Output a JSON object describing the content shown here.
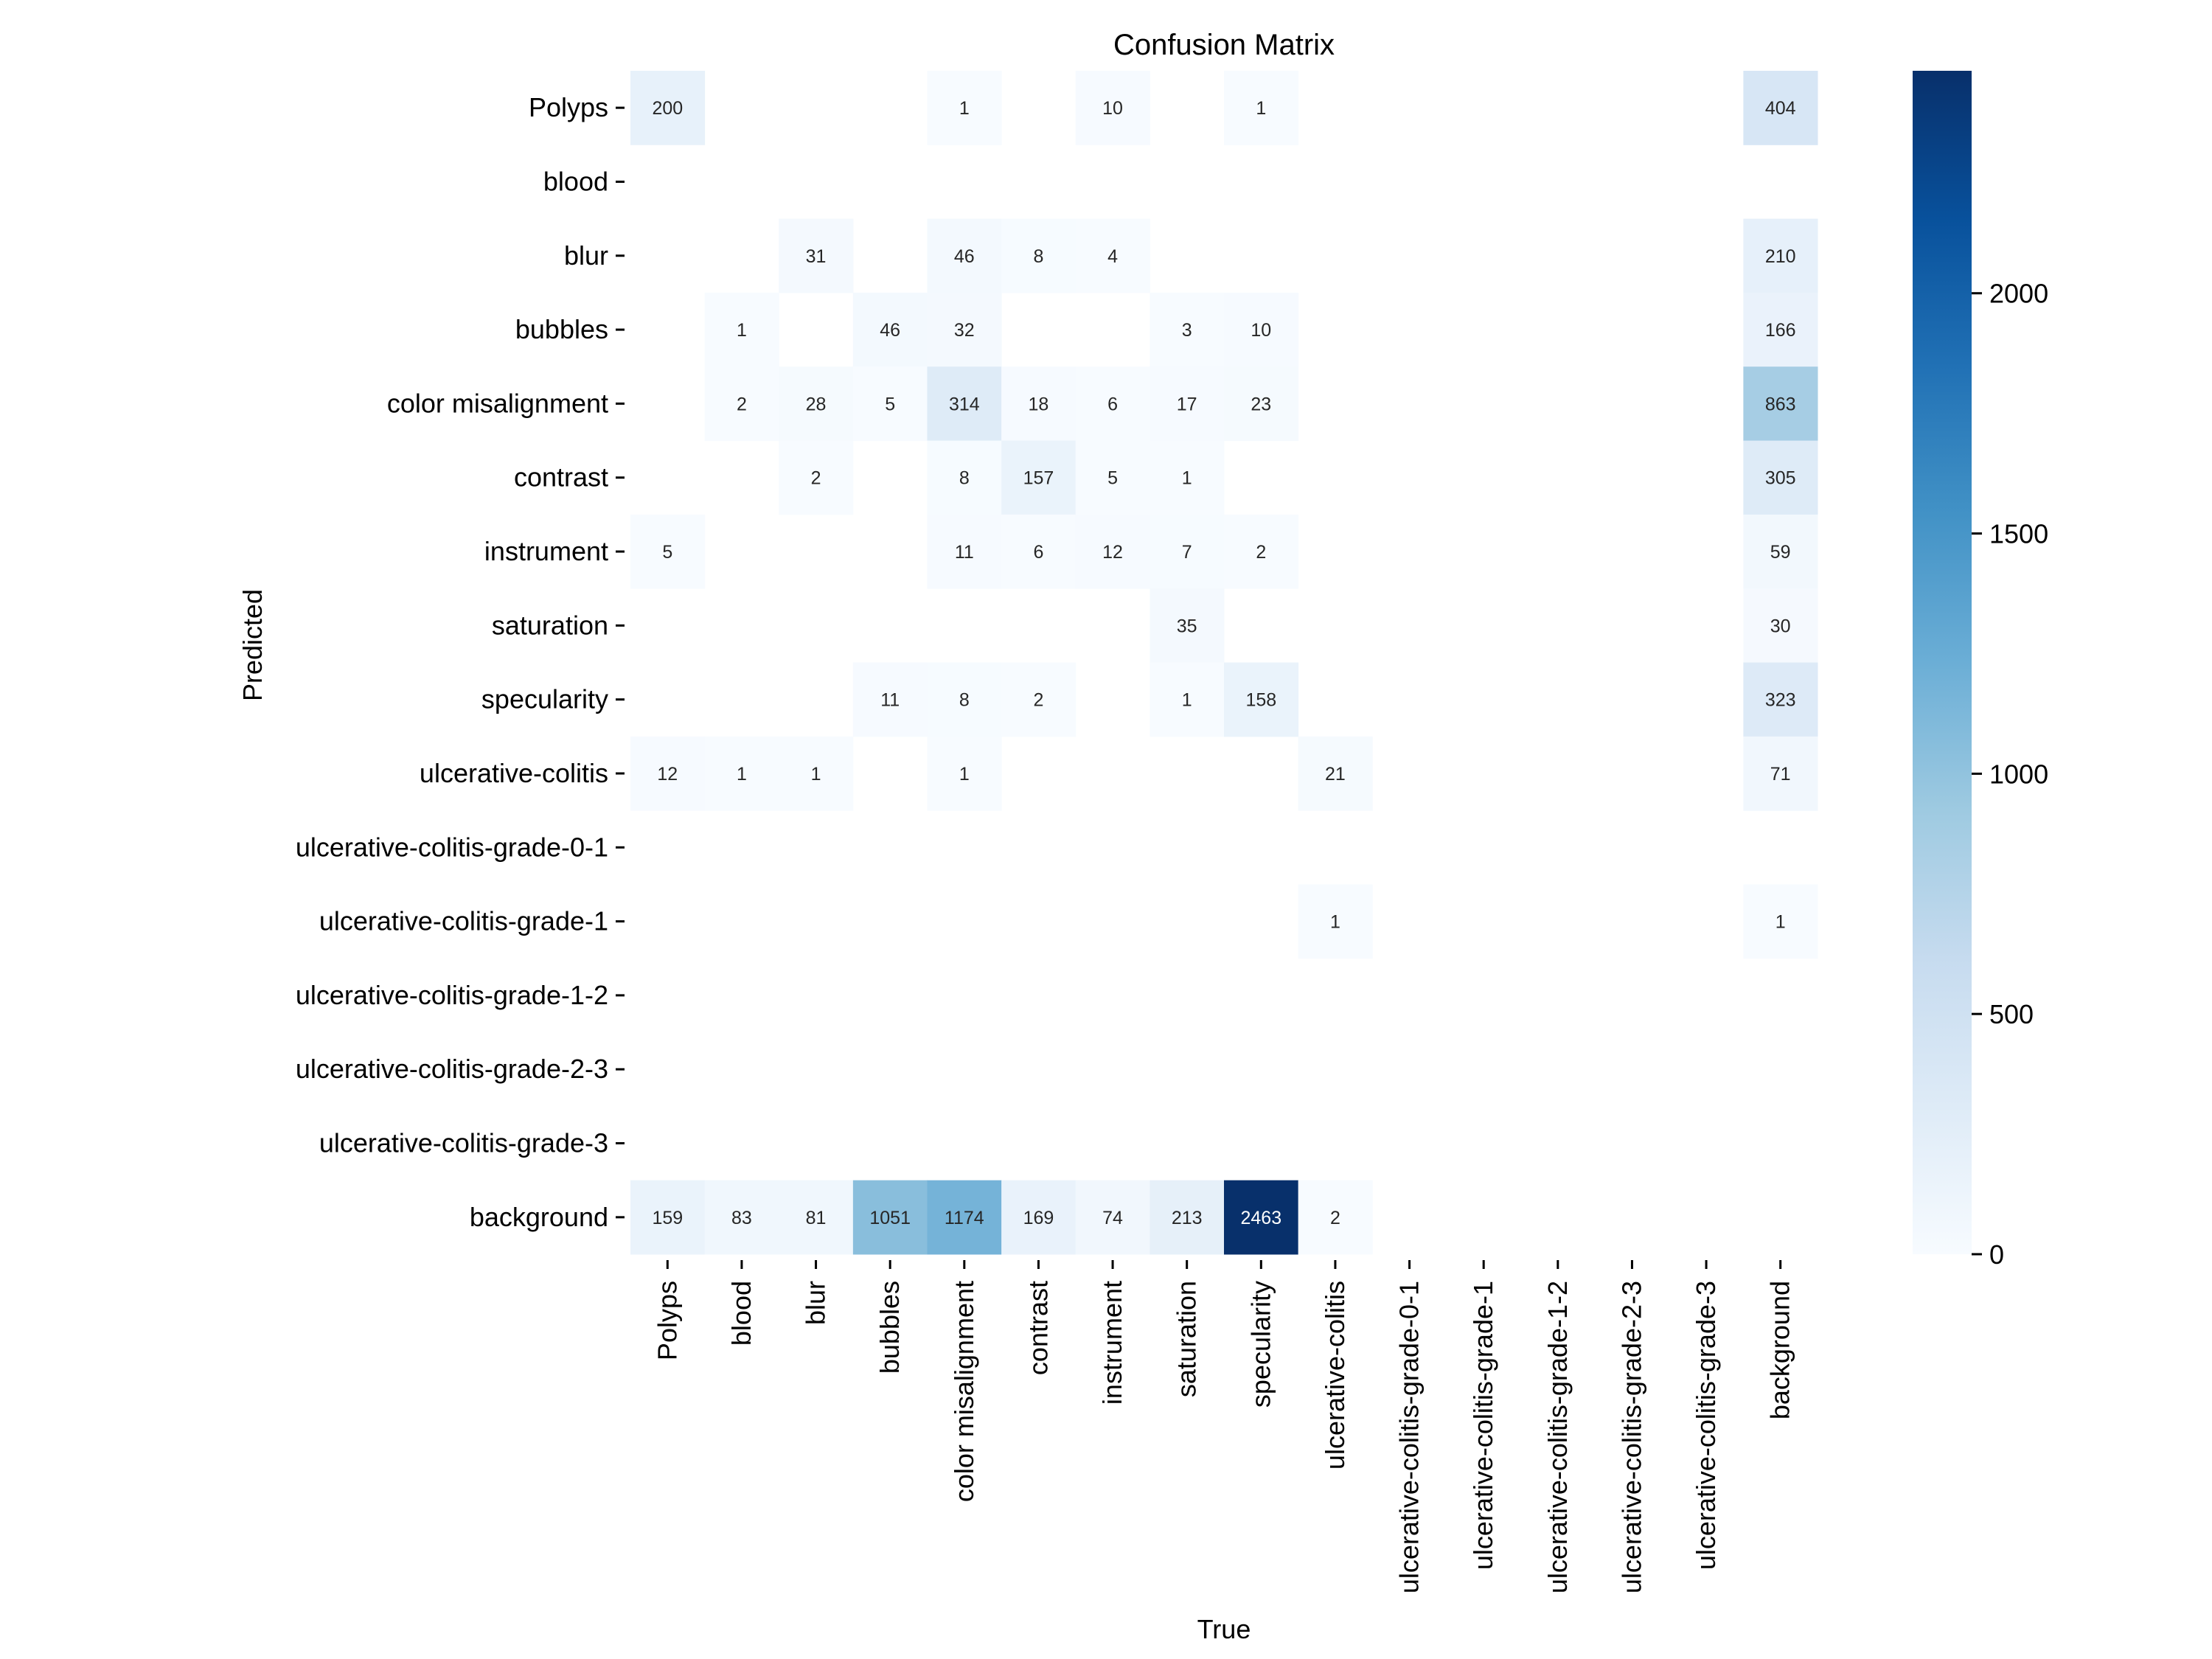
{
  "chart_data": {
    "type": "heatmap",
    "title": "Confusion Matrix",
    "xlabel": "True",
    "ylabel": "Predicted",
    "x_categories": [
      "Polyps",
      "blood",
      "blur",
      "bubbles",
      "color misalignment",
      "contrast",
      "instrument",
      "saturation",
      "specularity",
      "ulcerative-colitis",
      "ulcerative-colitis-grade-0-1",
      "ulcerative-colitis-grade-1",
      "ulcerative-colitis-grade-1-2",
      "ulcerative-colitis-grade-2-3",
      "ulcerative-colitis-grade-3",
      "background"
    ],
    "y_categories": [
      "Polyps",
      "blood",
      "blur",
      "bubbles",
      "color misalignment",
      "contrast",
      "instrument",
      "saturation",
      "specularity",
      "ulcerative-colitis",
      "ulcerative-colitis-grade-0-1",
      "ulcerative-colitis-grade-1",
      "ulcerative-colitis-grade-1-2",
      "ulcerative-colitis-grade-2-3",
      "ulcerative-colitis-grade-3",
      "background"
    ],
    "values": [
      [
        200,
        0,
        0,
        0,
        1,
        0,
        10,
        0,
        1,
        0,
        0,
        0,
        0,
        0,
        0,
        404
      ],
      [
        0,
        0,
        0,
        0,
        0,
        0,
        0,
        0,
        0,
        0,
        0,
        0,
        0,
        0,
        0,
        0
      ],
      [
        0,
        0,
        31,
        0,
        46,
        8,
        4,
        0,
        0,
        0,
        0,
        0,
        0,
        0,
        0,
        210
      ],
      [
        0,
        1,
        0,
        46,
        32,
        0,
        0,
        3,
        10,
        0,
        0,
        0,
        0,
        0,
        0,
        166
      ],
      [
        0,
        2,
        28,
        5,
        314,
        18,
        6,
        17,
        23,
        0,
        0,
        0,
        0,
        0,
        0,
        863
      ],
      [
        0,
        0,
        2,
        0,
        8,
        157,
        5,
        1,
        0,
        0,
        0,
        0,
        0,
        0,
        0,
        305
      ],
      [
        5,
        0,
        0,
        0,
        11,
        6,
        12,
        7,
        2,
        0,
        0,
        0,
        0,
        0,
        0,
        59
      ],
      [
        0,
        0,
        0,
        0,
        0,
        0,
        0,
        35,
        0,
        0,
        0,
        0,
        0,
        0,
        0,
        30
      ],
      [
        0,
        0,
        0,
        11,
        8,
        2,
        0,
        1,
        158,
        0,
        0,
        0,
        0,
        0,
        0,
        323
      ],
      [
        12,
        1,
        1,
        0,
        1,
        0,
        0,
        0,
        0,
        21,
        0,
        0,
        0,
        0,
        0,
        71
      ],
      [
        0,
        0,
        0,
        0,
        0,
        0,
        0,
        0,
        0,
        0,
        0,
        0,
        0,
        0,
        0,
        0
      ],
      [
        0,
        0,
        0,
        0,
        0,
        0,
        0,
        0,
        0,
        1,
        0,
        0,
        0,
        0,
        0,
        1
      ],
      [
        0,
        0,
        0,
        0,
        0,
        0,
        0,
        0,
        0,
        0,
        0,
        0,
        0,
        0,
        0,
        0
      ],
      [
        0,
        0,
        0,
        0,
        0,
        0,
        0,
        0,
        0,
        0,
        0,
        0,
        0,
        0,
        0,
        0
      ],
      [
        0,
        0,
        0,
        0,
        0,
        0,
        0,
        0,
        0,
        0,
        0,
        0,
        0,
        0,
        0,
        0
      ],
      [
        159,
        83,
        81,
        1051,
        1174,
        169,
        74,
        213,
        2463,
        2,
        0,
        0,
        0,
        0,
        0,
        0
      ]
    ],
    "colorbar": {
      "min": 0,
      "max": 2463,
      "ticks": [
        0,
        500,
        1000,
        1500,
        2000
      ]
    },
    "colormap": "Blues",
    "grid": false
  }
}
